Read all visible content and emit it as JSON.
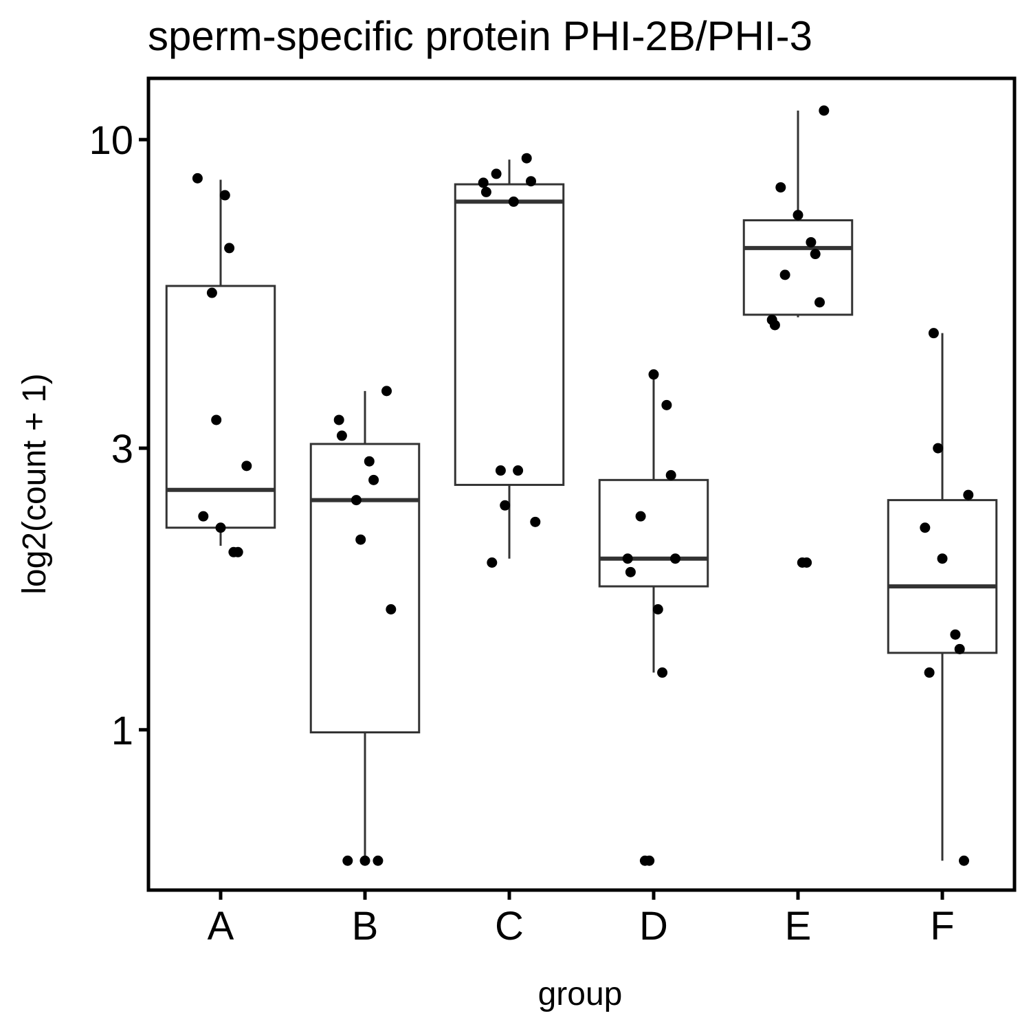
{
  "chart_data": {
    "type": "box",
    "title": "sperm-specific protein PHI-2B/PHI-3",
    "xlabel": "group",
    "ylabel": "log2(count + 1)",
    "y_scale": "log",
    "ylim": [
      0.535,
      12.7
    ],
    "y_ticks": [
      1,
      3,
      10
    ],
    "y_tick_labels": [
      "1",
      "3",
      "10"
    ],
    "categories": [
      "A",
      "B",
      "C",
      "D",
      "E",
      "F"
    ],
    "boxes": [
      {
        "group": "A",
        "whisker_low": 2.05,
        "q1": 2.2,
        "median": 2.55,
        "q3": 5.65,
        "whisker_high": 8.55
      },
      {
        "group": "B",
        "whisker_low": 0.6,
        "q1": 0.99,
        "median": 2.45,
        "q3": 3.05,
        "whisker_high": 3.75
      },
      {
        "group": "C",
        "whisker_low": 1.95,
        "q1": 2.6,
        "median": 7.85,
        "q3": 8.4,
        "whisker_high": 9.25
      },
      {
        "group": "D",
        "whisker_low": 1.25,
        "q1": 1.75,
        "median": 1.95,
        "q3": 2.65,
        "whisker_high": 4.0
      },
      {
        "group": "E",
        "whisker_low": 5.0,
        "q1": 5.05,
        "median": 6.55,
        "q3": 7.3,
        "whisker_high": 11.2
      },
      {
        "group": "F",
        "whisker_low": 0.6,
        "q1": 1.35,
        "median": 1.75,
        "q3": 2.45,
        "whisker_high": 4.7
      }
    ],
    "points": [
      {
        "group": "A",
        "values": [
          8.6,
          8.05,
          6.55,
          5.5,
          3.35,
          2.8,
          2.3,
          2.2,
          2.0,
          2.0
        ]
      },
      {
        "group": "B",
        "values": [
          3.75,
          3.35,
          3.15,
          2.85,
          2.65,
          2.45,
          2.1,
          1.6,
          0.6,
          0.6,
          0.6
        ]
      },
      {
        "group": "C",
        "values": [
          9.3,
          8.75,
          8.5,
          8.45,
          8.15,
          7.85,
          2.75,
          2.75,
          2.4,
          2.25,
          1.92
        ]
      },
      {
        "group": "D",
        "values": [
          4.0,
          3.55,
          2.7,
          2.3,
          1.95,
          1.95,
          1.85,
          1.6,
          1.25,
          0.6,
          0.6
        ]
      },
      {
        "group": "E",
        "values": [
          11.2,
          8.3,
          7.45,
          6.7,
          6.4,
          5.9,
          5.3,
          4.95,
          4.85,
          1.92,
          1.92
        ]
      },
      {
        "group": "F",
        "values": [
          4.7,
          3.0,
          2.5,
          2.2,
          1.95,
          1.45,
          1.37,
          1.25,
          0.6
        ]
      }
    ],
    "grid": false,
    "legend": "none"
  }
}
